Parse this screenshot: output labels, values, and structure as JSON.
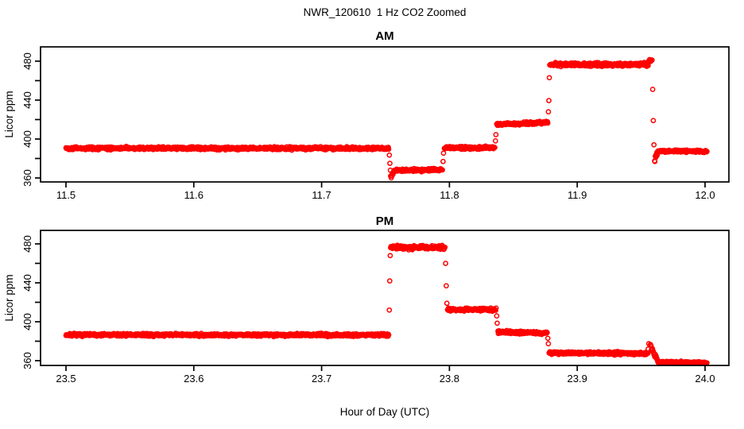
{
  "title": "NWR_120610  1 Hz CO2 Zoomed",
  "xlabel": "Hour of Day (UTC)",
  "marker_color": "#fe0000",
  "axis_color": "#000000",
  "chart_data": [
    {
      "type": "scatter",
      "title": "AM",
      "ylabel": "Licor ppm",
      "marker": "open-circle",
      "color": "#fe0000",
      "sample_rate_hz": 1,
      "xlim": [
        11.48,
        12.02
      ],
      "ylim": [
        355,
        495
      ],
      "xticks": [
        11.5,
        11.6,
        11.7,
        11.8,
        11.9,
        12.0
      ],
      "yticks": [
        360,
        380,
        400,
        420,
        440,
        460,
        480
      ],
      "ytick_labeled": [
        360,
        400,
        440,
        480
      ],
      "seed": 42,
      "segments": [
        {
          "t0": 11.5,
          "t1": 11.7525,
          "v0": 390.5,
          "v1": 390.5,
          "noise": 1.1
        },
        {
          "t0": 11.7545,
          "t1": 11.7565,
          "v0": 361.5,
          "v1": 365.0,
          "noise": 1.5
        },
        {
          "t0": 11.7565,
          "t1": 11.7945,
          "v0": 367.5,
          "v1": 368.5,
          "noise": 1.2
        },
        {
          "t0": 11.796,
          "t1": 11.8355,
          "v0": 391.0,
          "v1": 391.0,
          "noise": 1.1
        },
        {
          "t0": 11.837,
          "t1": 11.877,
          "v0": 415.0,
          "v1": 417.0,
          "noise": 1.1
        },
        {
          "t0": 11.8785,
          "t1": 11.9555,
          "v0": 476.5,
          "v1": 476.5,
          "noise": 1.4
        },
        {
          "t0": 11.9555,
          "t1": 11.9585,
          "v0": 479.0,
          "v1": 481.0,
          "noise": 1.2
        },
        {
          "t0": 11.9605,
          "t1": 11.9625,
          "v0": 379.0,
          "v1": 385.0,
          "noise": 2.0
        },
        {
          "t0": 11.9625,
          "t1": 12.0015,
          "v0": 387.5,
          "v1": 387.5,
          "noise": 0.9
        }
      ],
      "transition_points": [
        [
          11.753,
          383.5
        ],
        [
          11.7534,
          375.0
        ],
        [
          11.7538,
          368.0
        ],
        [
          11.754,
          362.0
        ],
        [
          11.795,
          377.0
        ],
        [
          11.7954,
          385.5
        ],
        [
          11.836,
          398.0
        ],
        [
          11.8364,
          404.5
        ],
        [
          11.8774,
          428.0
        ],
        [
          11.8778,
          439.5
        ],
        [
          11.8782,
          463.0
        ],
        [
          11.959,
          451.0
        ],
        [
          11.9595,
          419.0
        ],
        [
          11.96,
          394.0
        ]
      ]
    },
    {
      "type": "scatter",
      "title": "PM",
      "ylabel": "Licor ppm",
      "marker": "open-circle",
      "color": "#fe0000",
      "sample_rate_hz": 1,
      "xlim": [
        23.48,
        24.02
      ],
      "ylim": [
        355,
        495
      ],
      "xticks": [
        23.5,
        23.6,
        23.7,
        23.8,
        23.9,
        24.0
      ],
      "yticks": [
        360,
        380,
        400,
        420,
        440,
        460,
        480
      ],
      "ytick_labeled": [
        360,
        400,
        440,
        480
      ],
      "seed": 7,
      "segments": [
        {
          "t0": 23.5,
          "t1": 23.7525,
          "v0": 386.5,
          "v1": 386.5,
          "noise": 1.1
        },
        {
          "t0": 23.754,
          "t1": 23.7965,
          "v0": 476.5,
          "v1": 476.5,
          "noise": 1.5
        },
        {
          "t0": 23.7985,
          "t1": 23.8365,
          "v0": 412.5,
          "v1": 412.5,
          "noise": 1.2
        },
        {
          "t0": 23.838,
          "t1": 23.8765,
          "v0": 389.5,
          "v1": 388.5,
          "noise": 1.1
        },
        {
          "t0": 23.878,
          "t1": 23.9555,
          "v0": 368.0,
          "v1": 367.5,
          "noise": 1.1
        },
        {
          "t0": 23.957,
          "t1": 23.963,
          "v0": 376.0,
          "v1": 360.0,
          "noise": 1.5
        },
        {
          "t0": 23.963,
          "t1": 24.0015,
          "v0": 358.5,
          "v1": 358.0,
          "noise": 0.8
        }
      ],
      "transition_points": [
        [
          23.753,
          412.0
        ],
        [
          23.7533,
          442.0
        ],
        [
          23.7537,
          468.0
        ],
        [
          23.797,
          460.0
        ],
        [
          23.7975,
          437.0
        ],
        [
          23.798,
          419.0
        ],
        [
          23.837,
          406.0
        ],
        [
          23.8374,
          398.5
        ],
        [
          23.877,
          383.0
        ],
        [
          23.8774,
          377.5
        ],
        [
          23.9555,
          372.0
        ],
        [
          23.956,
          377.5
        ]
      ]
    }
  ]
}
